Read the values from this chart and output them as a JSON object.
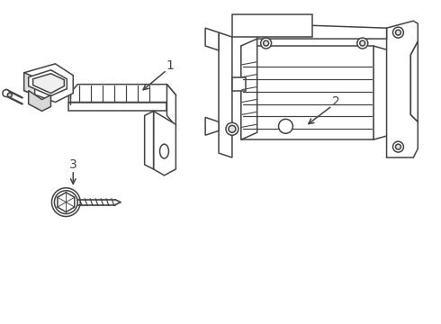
{
  "background_color": "#ffffff",
  "line_color": "#444444",
  "line_width": 1.1,
  "label_1": "1",
  "label_2": "2",
  "label_3": "3",
  "label_fontsize": 10,
  "figsize": [
    4.9,
    3.6
  ],
  "dpi": 100
}
